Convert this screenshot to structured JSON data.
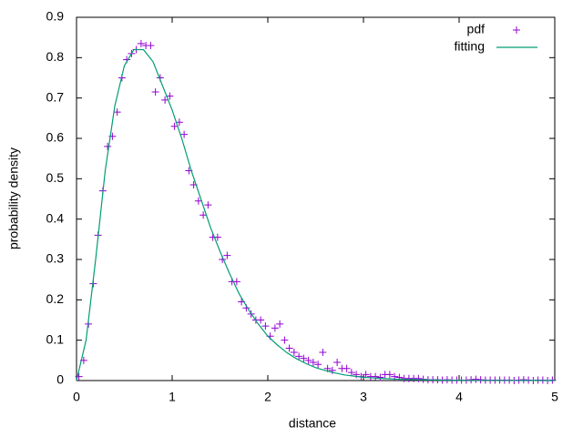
{
  "chart_data": {
    "type": "line",
    "xlabel": "distance",
    "ylabel": "probability density",
    "xlim": [
      0,
      5
    ],
    "ylim": [
      0,
      0.9
    ],
    "xticks": [
      0,
      1,
      2,
      3,
      4,
      5
    ],
    "yticks": [
      0,
      0.1,
      0.2,
      0.3,
      0.4,
      0.5,
      0.6,
      0.7,
      0.8,
      0.9
    ],
    "grid": false,
    "legend": "top-right",
    "series": [
      {
        "name": "pdf",
        "type": "scatter",
        "color": "#9400d3",
        "x": [
          0.025,
          0.075,
          0.125,
          0.175,
          0.225,
          0.275,
          0.325,
          0.375,
          0.425,
          0.475,
          0.525,
          0.575,
          0.625,
          0.675,
          0.725,
          0.775,
          0.825,
          0.875,
          0.925,
          0.975,
          1.025,
          1.075,
          1.125,
          1.175,
          1.225,
          1.275,
          1.325,
          1.375,
          1.425,
          1.475,
          1.525,
          1.575,
          1.625,
          1.675,
          1.725,
          1.775,
          1.825,
          1.875,
          1.925,
          1.975,
          2.025,
          2.075,
          2.125,
          2.175,
          2.225,
          2.275,
          2.325,
          2.375,
          2.425,
          2.475,
          2.525,
          2.575,
          2.625,
          2.675,
          2.725,
          2.775,
          2.825,
          2.875,
          2.925,
          2.975,
          3.025,
          3.075,
          3.125,
          3.175,
          3.225,
          3.275,
          3.325,
          3.375,
          3.425,
          3.475,
          3.525,
          3.575,
          3.625,
          3.675,
          3.725,
          3.775,
          3.825,
          3.875,
          3.925,
          3.975,
          4.025,
          4.075,
          4.125,
          4.175,
          4.225,
          4.275,
          4.325,
          4.375,
          4.425,
          4.475,
          4.525,
          4.575,
          4.625,
          4.675,
          4.725,
          4.775,
          4.825,
          4.875,
          4.925,
          4.975
        ],
        "values": [
          0.01,
          0.05,
          0.14,
          0.24,
          0.36,
          0.47,
          0.58,
          0.605,
          0.665,
          0.75,
          0.795,
          0.81,
          0.82,
          0.835,
          0.83,
          0.83,
          0.715,
          0.75,
          0.695,
          0.705,
          0.63,
          0.64,
          0.61,
          0.52,
          0.485,
          0.445,
          0.41,
          0.435,
          0.355,
          0.355,
          0.3,
          0.31,
          0.245,
          0.245,
          0.195,
          0.18,
          0.165,
          0.15,
          0.15,
          0.135,
          0.11,
          0.13,
          0.14,
          0.1,
          0.08,
          0.07,
          0.06,
          0.055,
          0.05,
          0.045,
          0.04,
          0.07,
          0.03,
          0.025,
          0.045,
          0.03,
          0.03,
          0.02,
          0.015,
          0.01,
          0.015,
          0.01,
          0.01,
          0.008,
          0.015,
          0.015,
          0.01,
          0.008,
          0.005,
          0.005,
          0.005,
          0.005,
          0.003,
          0.002,
          0.002,
          0.002,
          0.001,
          0.002,
          0.001,
          0.001,
          0.001,
          0.001,
          0.002,
          0.003,
          0.002,
          0.001,
          0.001,
          0.001,
          0.001,
          0.001,
          0.001,
          0,
          0.001,
          0.002,
          0.001,
          0,
          0.001,
          0.001,
          0,
          0.001
        ]
      },
      {
        "name": "fitting",
        "type": "line",
        "color": "#009e73",
        "x": [
          0,
          0.1,
          0.2,
          0.3,
          0.4,
          0.5,
          0.6,
          0.7,
          0.8,
          0.9,
          1.0,
          1.1,
          1.2,
          1.3,
          1.4,
          1.5,
          1.6,
          1.7,
          1.8,
          1.9,
          2.0,
          2.1,
          2.2,
          2.3,
          2.4,
          2.5,
          2.6,
          2.7,
          2.8,
          2.9,
          3.0,
          3.2,
          3.4,
          3.6,
          3.8,
          4.0,
          4.5,
          5.0
        ],
        "values": [
          0,
          0.1,
          0.3,
          0.52,
          0.68,
          0.78,
          0.82,
          0.82,
          0.79,
          0.73,
          0.67,
          0.6,
          0.52,
          0.45,
          0.38,
          0.32,
          0.265,
          0.215,
          0.175,
          0.14,
          0.11,
          0.088,
          0.069,
          0.054,
          0.042,
          0.032,
          0.025,
          0.019,
          0.014,
          0.011,
          0.008,
          0.005,
          0.003,
          0.002,
          0.001,
          0.0005,
          0.0001,
          0
        ]
      }
    ]
  }
}
